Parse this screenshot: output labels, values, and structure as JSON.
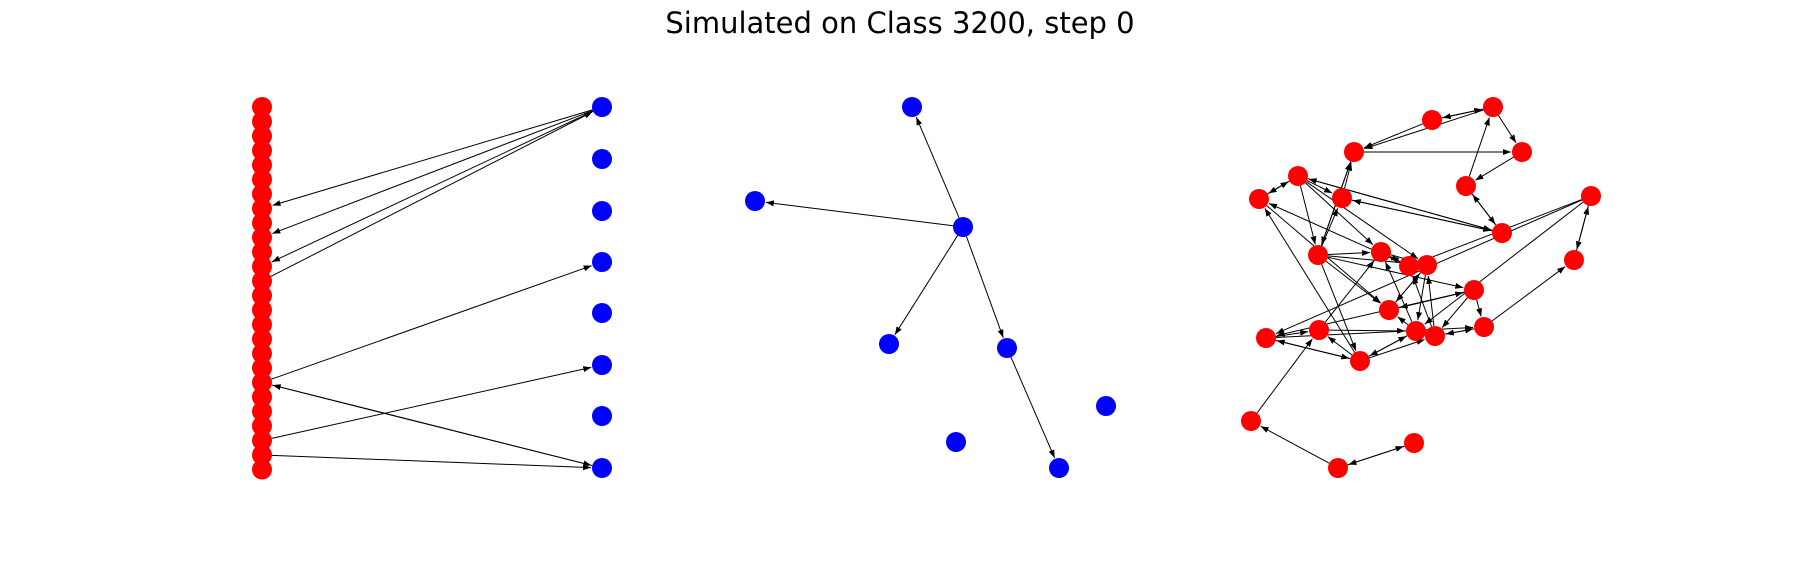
{
  "title": "Simulated on Class 3200, step 0",
  "colors": {
    "red": "#ff0000",
    "blue": "#0000ff",
    "edge": "#000000"
  },
  "panels": [
    {
      "name": "bipartite-panel",
      "nodes": [
        {
          "id": "r0",
          "c": "red"
        },
        {
          "id": "r1",
          "c": "red"
        },
        {
          "id": "r2",
          "c": "red"
        },
        {
          "id": "r3",
          "c": "red"
        },
        {
          "id": "r4",
          "c": "red"
        },
        {
          "id": "r5",
          "c": "red"
        },
        {
          "id": "r6",
          "c": "red"
        },
        {
          "id": "r7",
          "c": "red"
        },
        {
          "id": "r8",
          "c": "red"
        },
        {
          "id": "r9",
          "c": "red"
        },
        {
          "id": "r10",
          "c": "red"
        },
        {
          "id": "r11",
          "c": "red"
        },
        {
          "id": "r12",
          "c": "red"
        },
        {
          "id": "r13",
          "c": "red"
        },
        {
          "id": "r14",
          "c": "red"
        },
        {
          "id": "r15",
          "c": "red"
        },
        {
          "id": "r16",
          "c": "red"
        },
        {
          "id": "r17",
          "c": "red"
        },
        {
          "id": "r18",
          "c": "red"
        },
        {
          "id": "r19",
          "c": "red"
        },
        {
          "id": "r20",
          "c": "red"
        },
        {
          "id": "r21",
          "c": "red"
        },
        {
          "id": "r22",
          "c": "red"
        },
        {
          "id": "r23",
          "c": "red"
        },
        {
          "id": "r24",
          "c": "red"
        },
        {
          "id": "r25",
          "c": "red"
        },
        {
          "id": "b0",
          "c": "blue"
        },
        {
          "id": "b1",
          "c": "blue"
        },
        {
          "id": "b2",
          "c": "blue"
        },
        {
          "id": "b3",
          "c": "blue"
        },
        {
          "id": "b4",
          "c": "blue"
        },
        {
          "id": "b5",
          "c": "blue"
        },
        {
          "id": "b6",
          "c": "blue"
        },
        {
          "id": "b7",
          "c": "blue"
        }
      ],
      "edges": [
        [
          "b0",
          "r7"
        ],
        [
          "b0",
          "r9"
        ],
        [
          "b0",
          "r11"
        ],
        [
          "r12",
          "b0"
        ],
        [
          "r19",
          "b3"
        ],
        [
          "r19",
          "b7"
        ],
        [
          "r23",
          "b5"
        ],
        [
          "b7",
          "r19"
        ],
        [
          "r24",
          "b7"
        ]
      ]
    },
    {
      "name": "blue-graph-panel",
      "nodes": [
        {
          "id": "a0",
          "c": "blue"
        },
        {
          "id": "a1",
          "c": "blue"
        },
        {
          "id": "a2",
          "c": "blue"
        },
        {
          "id": "a3",
          "c": "blue"
        },
        {
          "id": "a4",
          "c": "blue"
        },
        {
          "id": "a5",
          "c": "blue"
        },
        {
          "id": "a6",
          "c": "blue"
        },
        {
          "id": "a7",
          "c": "blue"
        }
      ],
      "edges": [
        [
          "a2",
          "a0"
        ],
        [
          "a2",
          "a1"
        ],
        [
          "a2",
          "a3"
        ],
        [
          "a2",
          "a4"
        ],
        [
          "a4",
          "a7"
        ]
      ]
    },
    {
      "name": "red-graph-panel",
      "nodes": [
        {
          "id": "n0",
          "c": "red"
        },
        {
          "id": "n1",
          "c": "red"
        },
        {
          "id": "n2",
          "c": "red"
        },
        {
          "id": "n3",
          "c": "red"
        },
        {
          "id": "n4",
          "c": "red"
        },
        {
          "id": "n5",
          "c": "red"
        },
        {
          "id": "n6",
          "c": "red"
        },
        {
          "id": "n7",
          "c": "red"
        },
        {
          "id": "n8",
          "c": "red"
        },
        {
          "id": "n9",
          "c": "red"
        },
        {
          "id": "n10",
          "c": "red"
        },
        {
          "id": "n11",
          "c": "red"
        },
        {
          "id": "n12",
          "c": "red"
        },
        {
          "id": "n13",
          "c": "red"
        },
        {
          "id": "n14",
          "c": "red"
        },
        {
          "id": "n15",
          "c": "red"
        },
        {
          "id": "n16",
          "c": "red"
        },
        {
          "id": "n17",
          "c": "red"
        },
        {
          "id": "n18",
          "c": "red"
        },
        {
          "id": "n19",
          "c": "red"
        },
        {
          "id": "n20",
          "c": "red"
        },
        {
          "id": "n21",
          "c": "red"
        },
        {
          "id": "n22",
          "c": "red"
        },
        {
          "id": "n23",
          "c": "red"
        },
        {
          "id": "n24",
          "c": "red"
        },
        {
          "id": "n25",
          "c": "red"
        }
      ],
      "edges": [
        [
          "n0",
          "n1"
        ],
        [
          "n1",
          "n0"
        ],
        [
          "n1",
          "n2"
        ],
        [
          "n1",
          "n5"
        ],
        [
          "n0",
          "n5"
        ],
        [
          "n3",
          "n1"
        ],
        [
          "n4",
          "n3"
        ],
        [
          "n3",
          "n4"
        ],
        [
          "n4",
          "n6"
        ],
        [
          "n6",
          "n4"
        ],
        [
          "n4",
          "n8"
        ],
        [
          "n8",
          "n4"
        ],
        [
          "n5",
          "n2"
        ],
        [
          "n5",
          "n7"
        ],
        [
          "n7",
          "n5"
        ],
        [
          "n7",
          "n6"
        ],
        [
          "n6",
          "n5"
        ],
        [
          "n2",
          "n3"
        ],
        [
          "n7",
          "n14"
        ],
        [
          "n7",
          "n10"
        ],
        [
          "n7",
          "n12"
        ],
        [
          "n7",
          "n13"
        ],
        [
          "n7",
          "n20"
        ],
        [
          "n8",
          "n12"
        ],
        [
          "n8",
          "n10"
        ],
        [
          "n8",
          "n6"
        ],
        [
          "n8",
          "n7"
        ],
        [
          "n8",
          "n9"
        ],
        [
          "n9",
          "n8"
        ],
        [
          "n10",
          "n11"
        ],
        [
          "n11",
          "n10"
        ],
        [
          "n11",
          "n9"
        ],
        [
          "n12",
          "n11"
        ],
        [
          "n10",
          "n12"
        ],
        [
          "n12",
          "n13"
        ],
        [
          "n13",
          "n12"
        ],
        [
          "n14",
          "n13"
        ],
        [
          "n13",
          "n14"
        ],
        [
          "n15",
          "n13"
        ],
        [
          "n16",
          "n17"
        ],
        [
          "n14",
          "n16"
        ],
        [
          "n14",
          "n21"
        ],
        [
          "n16",
          "n19"
        ],
        [
          "n19",
          "n16"
        ],
        [
          "n20",
          "n19"
        ],
        [
          "n19",
          "n11"
        ],
        [
          "n20",
          "n15"
        ],
        [
          "n15",
          "n20"
        ],
        [
          "n18",
          "n15"
        ],
        [
          "n18",
          "n21"
        ],
        [
          "n17",
          "n18"
        ],
        [
          "n18",
          "n17"
        ],
        [
          "n20",
          "n22"
        ],
        [
          "n21",
          "n20"
        ],
        [
          "n20",
          "n21"
        ],
        [
          "n21",
          "n22"
        ],
        [
          "n23",
          "n22"
        ],
        [
          "n24",
          "n23"
        ],
        [
          "n24",
          "n25"
        ],
        [
          "n25",
          "n24"
        ],
        [
          "n22",
          "n10"
        ],
        [
          "n19",
          "n12"
        ],
        [
          "n20",
          "n9"
        ],
        [
          "n18",
          "n11"
        ],
        [
          "n15",
          "n10"
        ],
        [
          "n22",
          "n15"
        ],
        [
          "n14",
          "n19"
        ],
        [
          "n21",
          "n16"
        ],
        [
          "n9",
          "n13"
        ],
        [
          "n12",
          "n15"
        ]
      ]
    }
  ]
}
